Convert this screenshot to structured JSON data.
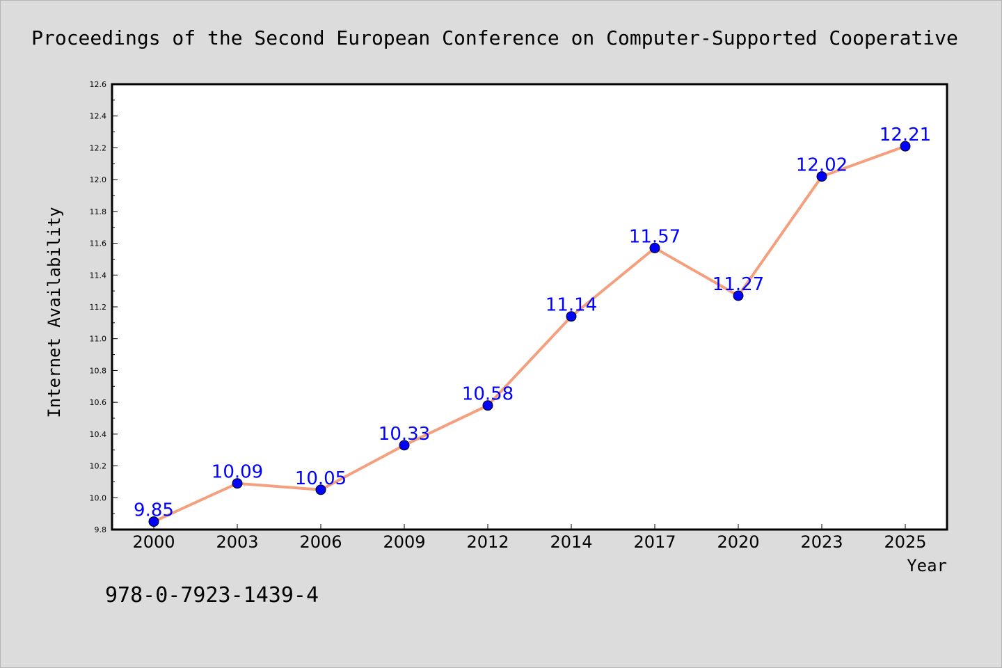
{
  "chart_data": {
    "type": "line",
    "title": "Proceedings of the Second European Conference on Computer-Supported Cooperative",
    "xlabel": "Year",
    "ylabel": "Internet Availability",
    "categories": [
      "2000",
      "2003",
      "2006",
      "2009",
      "2012",
      "2014",
      "2017",
      "2020",
      "2023",
      "2025"
    ],
    "series": [
      {
        "values": [
          9.85,
          10.09,
          10.05,
          10.33,
          10.58,
          11.14,
          11.57,
          11.27,
          12.02,
          12.21
        ],
        "labels": [
          "9.85",
          "10.09",
          "10.05",
          "10.33",
          "10.58",
          "11.14",
          "11.57",
          "11.27",
          "12.02",
          "12.21"
        ],
        "line_color": "#f4a07e",
        "marker_color": "#0000ff"
      }
    ],
    "ylim": [
      9.8,
      12.6
    ],
    "yticks": [
      "9.8",
      "10.0",
      "10.2",
      "10.4",
      "10.6",
      "10.8",
      "11.0",
      "11.2",
      "11.4",
      "11.6",
      "11.8",
      "12.0",
      "12.2",
      "12.4",
      "12.6"
    ],
    "grid": false,
    "legend": "none",
    "data_label_color": "#0000ff"
  },
  "footer": {
    "isbn": "978-0-7923-1439-4"
  }
}
